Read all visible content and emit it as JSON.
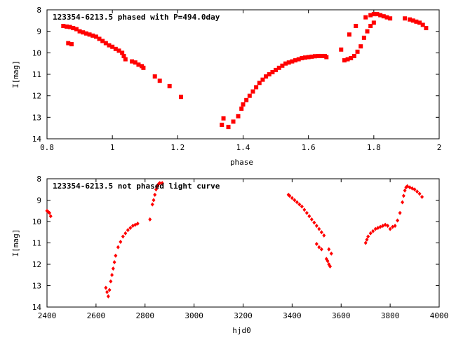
{
  "colors": {
    "marker": "#ff0000",
    "frame": "#000000",
    "background": "#ffffff"
  },
  "chart_data": [
    {
      "type": "scatter",
      "title": "123354-6213.5 phased with P=494.0day",
      "xlabel": "phase",
      "ylabel": "I[mag]",
      "xlim": [
        0.8,
        2.0
      ],
      "ylim": [
        14,
        8
      ],
      "y_inverted": true,
      "grid": false,
      "legend": "none",
      "xticks": [
        "0.8",
        "1",
        "1.2",
        "1.4",
        "1.6",
        "1.8",
        "2"
      ],
      "xtick_values": [
        0.8,
        1.0,
        1.2,
        1.4,
        1.6,
        1.8,
        2.0
      ],
      "yticks": [
        "8",
        "9",
        "10",
        "11",
        "12",
        "13",
        "14"
      ],
      "ytick_values": [
        8,
        9,
        10,
        11,
        12,
        13,
        14
      ],
      "series": [
        {
          "marker": "square",
          "x": [
            0.85,
            0.86,
            0.87,
            0.88,
            0.89,
            0.865,
            0.875,
            0.9,
            0.91,
            0.92,
            0.93,
            0.94,
            0.95,
            0.96,
            0.97,
            0.98,
            0.99,
            1.0,
            1.01,
            1.02,
            1.03,
            1.035,
            1.04,
            1.06,
            1.07,
            1.08,
            1.09,
            1.095,
            1.13,
            1.145,
            1.175,
            1.21,
            1.335,
            1.34,
            1.355,
            1.37,
            1.385,
            1.395,
            1.4,
            1.41,
            1.42,
            1.43,
            1.44,
            1.45,
            1.46,
            1.47,
            1.48,
            1.49,
            1.5,
            1.51,
            1.52,
            1.53,
            1.54,
            1.55,
            1.56,
            1.57,
            1.58,
            1.59,
            1.6,
            1.61,
            1.62,
            1.63,
            1.64,
            1.65,
            1.655,
            1.7,
            1.71,
            1.72,
            1.73,
            1.74,
            1.75,
            1.76,
            1.77,
            1.78,
            1.79,
            1.8,
            1.725,
            1.745,
            1.775,
            1.79,
            1.8,
            1.81,
            1.82,
            1.83,
            1.84,
            1.85,
            1.895,
            1.91,
            1.92,
            1.93,
            1.94,
            1.95,
            1.96
          ],
          "y": [
            8.75,
            8.78,
            8.8,
            8.85,
            8.9,
            9.55,
            9.6,
            9.0,
            9.05,
            9.1,
            9.15,
            9.2,
            9.25,
            9.35,
            9.45,
            9.55,
            9.65,
            9.72,
            9.82,
            9.9,
            10.0,
            10.15,
            10.3,
            10.4,
            10.45,
            10.55,
            10.62,
            10.7,
            11.1,
            11.3,
            11.55,
            12.05,
            13.35,
            13.05,
            13.45,
            13.2,
            12.95,
            12.6,
            12.4,
            12.2,
            12.0,
            11.8,
            11.6,
            11.4,
            11.25,
            11.1,
            11.0,
            10.9,
            10.8,
            10.7,
            10.6,
            10.5,
            10.45,
            10.4,
            10.35,
            10.3,
            10.25,
            10.22,
            10.2,
            10.18,
            10.16,
            10.15,
            10.15,
            10.15,
            10.2,
            9.85,
            10.35,
            10.3,
            10.25,
            10.15,
            9.95,
            9.7,
            9.3,
            9.0,
            8.75,
            8.6,
            9.15,
            8.75,
            8.35,
            8.25,
            8.2,
            8.2,
            8.25,
            8.3,
            8.35,
            8.4,
            8.4,
            8.45,
            8.5,
            8.55,
            8.6,
            8.7,
            8.85
          ]
        }
      ]
    },
    {
      "type": "scatter",
      "title": "123354-6213.5 not phased light curve",
      "xlabel": "hjd0",
      "ylabel": "I[mag]",
      "xlim": [
        2400,
        4000
      ],
      "ylim": [
        14,
        8
      ],
      "y_inverted": true,
      "grid": false,
      "legend": "none",
      "xticks": [
        "2400",
        "2600",
        "2800",
        "3000",
        "3200",
        "3400",
        "3600",
        "3800",
        "4000"
      ],
      "xtick_values": [
        2400,
        2600,
        2800,
        3000,
        3200,
        3400,
        3600,
        3800,
        4000
      ],
      "yticks": [
        "8",
        "9",
        "10",
        "11",
        "12",
        "13",
        "14"
      ],
      "ytick_values": [
        8,
        9,
        10,
        11,
        12,
        13,
        14
      ],
      "series": [
        {
          "marker": "diamond",
          "x": [
            2400,
            2405,
            2410,
            2415,
            2640,
            2645,
            2650,
            2655,
            2660,
            2665,
            2670,
            2675,
            2680,
            2690,
            2700,
            2710,
            2720,
            2730,
            2740,
            2750,
            2760,
            2770,
            2820,
            2830,
            2835,
            2840,
            2845,
            2850,
            2855,
            2860,
            2870,
            3385,
            3390,
            3400,
            3410,
            3420,
            3430,
            3440,
            3450,
            3460,
            3470,
            3480,
            3490,
            3500,
            3510,
            3520,
            3530,
            3550,
            3560,
            3700,
            3705,
            3710,
            3720,
            3730,
            3740,
            3750,
            3760,
            3770,
            3780,
            3790,
            3800,
            3810,
            3820,
            3830,
            3840,
            3850,
            3855,
            3860,
            3865,
            3870,
            3880,
            3890,
            3900,
            3910,
            3920,
            3930
          ],
          "y": [
            9.5,
            9.55,
            9.6,
            9.75,
            13.1,
            13.3,
            13.5,
            13.2,
            12.8,
            12.5,
            12.2,
            11.9,
            11.6,
            11.2,
            10.95,
            10.7,
            10.55,
            10.4,
            10.3,
            10.2,
            10.15,
            10.1,
            9.9,
            9.2,
            9.0,
            8.75,
            8.5,
            8.35,
            8.25,
            8.2,
            8.2,
            8.75,
            8.8,
            8.9,
            9.0,
            9.1,
            9.2,
            9.3,
            9.45,
            9.6,
            9.75,
            9.9,
            10.05,
            10.2,
            10.35,
            10.5,
            10.65,
            11.3,
            11.5,
            11.0,
            10.85,
            10.7,
            10.55,
            10.45,
            10.35,
            10.3,
            10.25,
            10.2,
            10.15,
            10.2,
            10.35,
            10.25,
            10.2,
            9.95,
            9.6,
            9.1,
            8.8,
            8.55,
            8.4,
            8.35,
            8.4,
            8.45,
            8.5,
            8.6,
            8.7,
            8.85
          ]
        },
        {
          "marker": "diamond",
          "x": [
            3500,
            3510,
            3520,
            3540,
            3545,
            3550,
            3555
          ],
          "y": [
            11.05,
            11.2,
            11.3,
            11.75,
            11.85,
            12.0,
            12.1
          ]
        }
      ]
    }
  ]
}
